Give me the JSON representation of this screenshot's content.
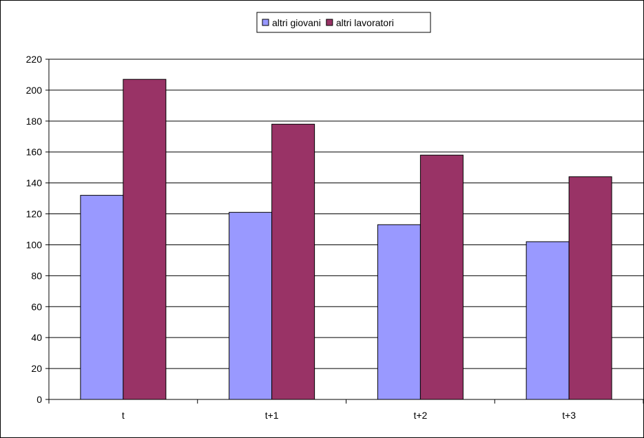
{
  "chart_data": {
    "type": "bar",
    "categories": [
      "t",
      "t+1",
      "t+2",
      "t+3"
    ],
    "series": [
      {
        "name": "altri giovani",
        "values": [
          132,
          121,
          113,
          102
        ],
        "color": "#9999FF"
      },
      {
        "name": "altri lavoratori",
        "values": [
          207,
          178,
          158,
          144
        ],
        "color": "#993366"
      }
    ],
    "title": "",
    "xlabel": "",
    "ylabel": "",
    "ylim": [
      0,
      220
    ],
    "yticks": [
      0,
      20,
      40,
      60,
      80,
      100,
      120,
      140,
      160,
      180,
      200,
      220
    ],
    "grid": true,
    "legend_position": "top-center"
  }
}
